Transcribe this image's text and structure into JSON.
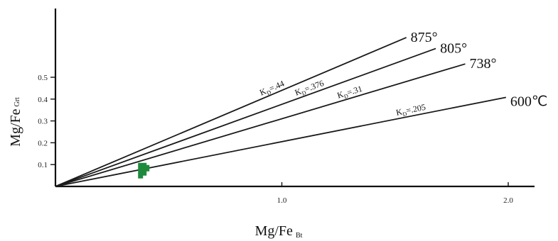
{
  "chart_data": {
    "type": "line",
    "xlabel": "Mg/Fe",
    "xlabel_sub": "Bt",
    "ylabel": "Mg/Fe",
    "ylabel_sub": "Grt",
    "xlim": [
      0,
      2.0
    ],
    "ylim": [
      0,
      0.55
    ],
    "x_ticks": [
      {
        "value": 1.0,
        "label": "1.0"
      },
      {
        "value": 2.0,
        "label": "2.0"
      }
    ],
    "y_ticks": [
      {
        "value": 0.1,
        "label": "0.1"
      },
      {
        "value": 0.2,
        "label": "0.2"
      },
      {
        "value": 0.3,
        "label": "0.3"
      },
      {
        "value": 0.4,
        "label": "0.4"
      },
      {
        "value": 0.5,
        "label": "0.5"
      }
    ],
    "grid": false,
    "series": [
      {
        "name": "875°",
        "kd_prefix": "K",
        "kd_sub": "D",
        "kd_value": "=.44",
        "slope": 0.44,
        "x_end": 1.55,
        "color": "#1a1a1a"
      },
      {
        "name": "805°",
        "kd_prefix": "K",
        "kd_sub": "D",
        "kd_value": "=.376",
        "slope": 0.376,
        "x_end": 1.68,
        "color": "#1a1a1a"
      },
      {
        "name": "738°",
        "kd_prefix": "K",
        "kd_sub": "D",
        "kd_value": "=.31",
        "slope": 0.31,
        "x_end": 1.81,
        "color": "#1a1a1a"
      },
      {
        "name": "600℃",
        "kd_prefix": "K",
        "kd_sub": "D",
        "kd_value": "=.205",
        "slope": 0.205,
        "x_end": 1.99,
        "color": "#1a1a1a"
      }
    ],
    "sample_marker": {
      "x": 0.39,
      "y": 0.082,
      "color": "#1e8b3c"
    }
  }
}
